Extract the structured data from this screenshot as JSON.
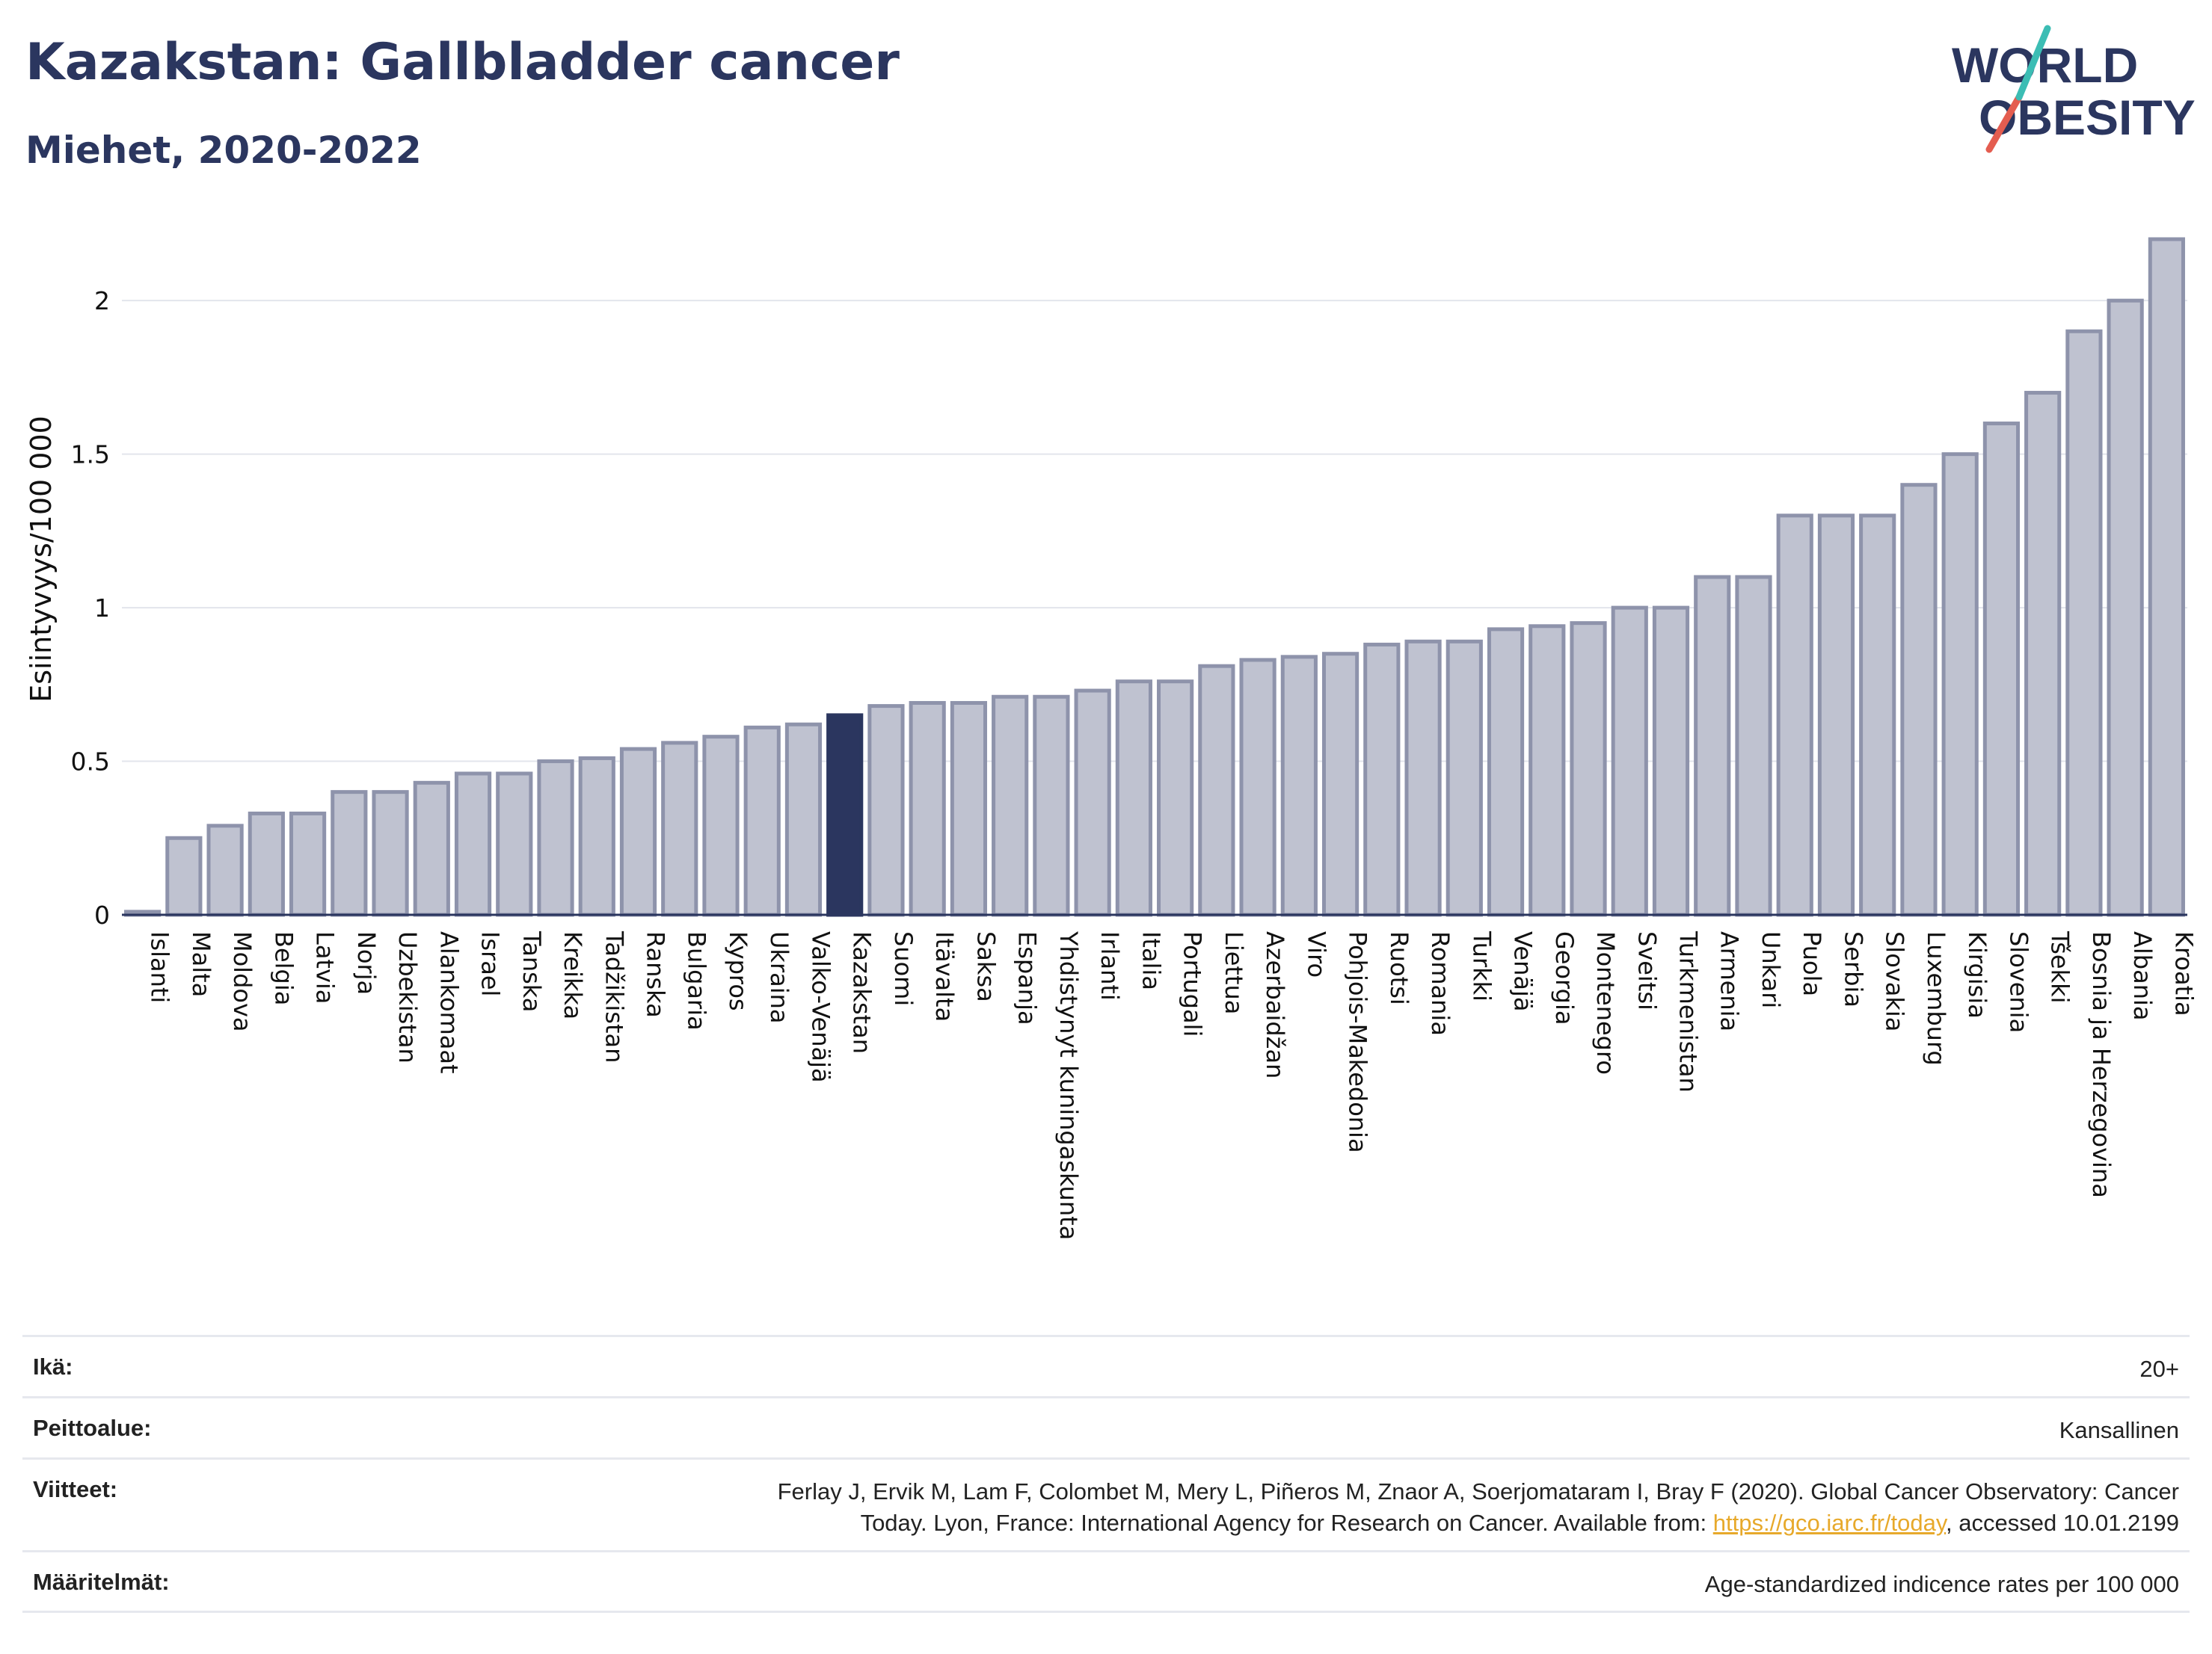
{
  "header": {
    "title": "Kazakstan: Gallbladder cancer",
    "subtitle": "Miehet, 2020-2022"
  },
  "logo": {
    "line1": "WORLD",
    "line2": "OBESITY",
    "stroke_colors": [
      "#3cbdb4",
      "#e45d50"
    ]
  },
  "colors": {
    "bar": "#bfc2d0",
    "bar_border": "#8e93ab",
    "highlight": "#2b365f",
    "title": "#2b365f",
    "link": "#e7a92b"
  },
  "chart_data": {
    "type": "bar",
    "title": "Kazakstan: Gallbladder cancer",
    "subtitle": "Miehet, 2020-2022",
    "ylabel": "Esiintyvyys/100 000",
    "ylim": [
      0,
      2.2
    ],
    "yticks": [
      0,
      0.5,
      1,
      1.5,
      2
    ],
    "ytick_labels": [
      "0",
      "0.5",
      "1",
      "1.5",
      "2"
    ],
    "grid": true,
    "highlight": "Kazakstan",
    "categories": [
      "Islanti",
      "Malta",
      "Moldova",
      "Belgia",
      "Latvia",
      "Norja",
      "Uzbekistan",
      "Alankomaat",
      "Israel",
      "Tanska",
      "Kreikka",
      "Tadžikistan",
      "Ranska",
      "Bulgaria",
      "Kypros",
      "Ukraina",
      "Valko-Venäjä",
      "Kazakstan",
      "Suomi",
      "Itävalta",
      "Saksa",
      "Espanja",
      "Yhdistynyt kuningaskunta",
      "Irlanti",
      "Italia",
      "Portugali",
      "Liettua",
      "Azerbaidžan",
      "Viro",
      "Pohjois-Makedonia",
      "Ruotsi",
      "Romania",
      "Turkki",
      "Venäjä",
      "Georgia",
      "Montenegro",
      "Sveitsi",
      "Turkmenistan",
      "Armenia",
      "Unkari",
      "Puola",
      "Serbia",
      "Slovakia",
      "Luxemburg",
      "Kirgisia",
      "Slovenia",
      "Tšekki",
      "Bosnia ja Herzegovina",
      "Albania",
      "Kroatia"
    ],
    "values": [
      0.01,
      0.25,
      0.29,
      0.33,
      0.33,
      0.4,
      0.4,
      0.43,
      0.46,
      0.46,
      0.5,
      0.51,
      0.54,
      0.56,
      0.58,
      0.61,
      0.62,
      0.65,
      0.68,
      0.69,
      0.69,
      0.71,
      0.71,
      0.73,
      0.76,
      0.76,
      0.81,
      0.83,
      0.84,
      0.85,
      0.88,
      0.89,
      0.89,
      0.93,
      0.94,
      0.95,
      1.0,
      1.0,
      1.1,
      1.1,
      1.3,
      1.3,
      1.3,
      1.4,
      1.5,
      1.6,
      1.7,
      1.9,
      2.0,
      2.2
    ]
  },
  "meta": {
    "age_label": "Ikä:",
    "age_value": "20+",
    "coverage_label": "Peittoalue:",
    "coverage_value": "Kansallinen",
    "refs_label": "Viitteet:",
    "refs_line1": "Ferlay J, Ervik M, Lam F, Colombet M, Mery L, Piñeros M, Znaor A, Soerjomataram I, Bray F (2020). Global Cancer Observatory: Cancer",
    "refs_line2_pre": "Today. Lyon, France: International Agency for Research on Cancer. Available from: ",
    "refs_link": "https://gco.iarc.fr/today",
    "refs_line2_post": ", accessed 10.01.2199",
    "defs_label": "Määritelmät:",
    "defs_value": "Age-standardized indicence rates per 100 000"
  }
}
